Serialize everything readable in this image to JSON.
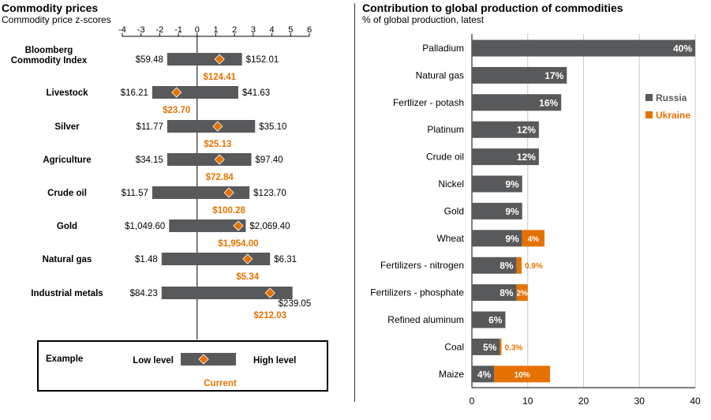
{
  "colors": {
    "bar": "#58595b",
    "accent": "#e57200",
    "axis": "#000000",
    "grid": "#c8c8c8"
  },
  "left": {
    "title": "Commodity prices",
    "subtitle": "Commodity price z-scores"
  },
  "right": {
    "title": "Contribution to global production of commodities",
    "subtitle": "% of global production, latest"
  },
  "example": {
    "label": "Example",
    "low": "Low level",
    "high": "High level",
    "current": "Current"
  },
  "chart_data": [
    {
      "type": "range",
      "title": "Commodity prices",
      "subtitle": "Commodity price z-scores",
      "xlim": [
        -4,
        6
      ],
      "xticks": [
        -4,
        -3,
        -2,
        -1,
        0,
        1,
        2,
        3,
        4,
        5,
        6
      ],
      "rows": [
        {
          "name": "Bloomberg Commodity Index",
          "lines": [
            "Bloomberg",
            "Commodity Index"
          ],
          "low": -1.6,
          "high": 2.4,
          "current": 1.2,
          "low_label": "$59.48",
          "high_label": "$152.01",
          "current_label": "$124.41"
        },
        {
          "name": "Livestock",
          "lines": [
            "Livestock"
          ],
          "low": -2.4,
          "high": 2.2,
          "current": -1.1,
          "low_label": "$16.21",
          "high_label": "$41.63",
          "current_label": "$23.70"
        },
        {
          "name": "Silver",
          "lines": [
            "Silver"
          ],
          "low": -1.6,
          "high": 3.1,
          "current": 1.1,
          "low_label": "$11.77",
          "high_label": "$35.10",
          "current_label": "$25.13"
        },
        {
          "name": "Agriculture",
          "lines": [
            "Agriculture"
          ],
          "low": -1.6,
          "high": 2.9,
          "current": 1.2,
          "low_label": "$34.15",
          "high_label": "$97.40",
          "current_label": "$72.84"
        },
        {
          "name": "Crude oil",
          "lines": [
            "Crude oil"
          ],
          "low": -2.4,
          "high": 2.8,
          "current": 1.7,
          "low_label": "$11.57",
          "high_label": "$123.70",
          "current_label": "$100.28"
        },
        {
          "name": "Gold",
          "lines": [
            "Gold"
          ],
          "low": -1.5,
          "high": 2.6,
          "current": 2.2,
          "low_label": "$1,049.60",
          "high_label": "$2,069.40",
          "current_label": "$1,954.00"
        },
        {
          "name": "Natural gas",
          "lines": [
            "Natural gas"
          ],
          "low": -1.9,
          "high": 3.9,
          "current": 2.7,
          "low_label": "$1.48",
          "high_label": "$6.31",
          "current_label": "$5.34"
        },
        {
          "name": "Industrial metals",
          "lines": [
            "Industrial metals"
          ],
          "low": -1.9,
          "high": 5.1,
          "current": 3.9,
          "low_label": "$84.23",
          "high_label": "$239.05",
          "current_label": "$212.03"
        }
      ]
    },
    {
      "type": "bar",
      "orientation": "horizontal",
      "stacked": true,
      "title": "Contribution to global production of commodities",
      "subtitle": "% of global production, latest",
      "xlim": [
        0,
        40
      ],
      "xticks": [
        0,
        10,
        20,
        30,
        40
      ],
      "grid": true,
      "legend_position": "right",
      "categories": [
        "Palladium",
        "Natural gas",
        "Fertlizer - potash",
        "Platinum",
        "Crude oil",
        "Nickel",
        "Gold",
        "Wheat",
        "Fertilizers - nitrogen",
        "Fertilizers - phosphate",
        "Refined aluminum",
        "Coal",
        "Maize"
      ],
      "series": [
        {
          "name": "Russia",
          "values": [
            40,
            17,
            16,
            12,
            12,
            9,
            9,
            9,
            8,
            8,
            6,
            5,
            4
          ],
          "labels": [
            "40%",
            "17%",
            "16%",
            "12%",
            "12%",
            "9%",
            "9%",
            "9%",
            "8%",
            "8%",
            "6%",
            "5%",
            "4%"
          ]
        },
        {
          "name": "Ukraine",
          "values": [
            0,
            0,
            0,
            0,
            0,
            0,
            0,
            4,
            0.9,
            2,
            0,
            0.3,
            10
          ],
          "labels": [
            "",
            "",
            "",
            "",
            "",
            "",
            "",
            "4%",
            "0.9%",
            "2%",
            "",
            "0.3%",
            "10%"
          ]
        }
      ]
    }
  ]
}
